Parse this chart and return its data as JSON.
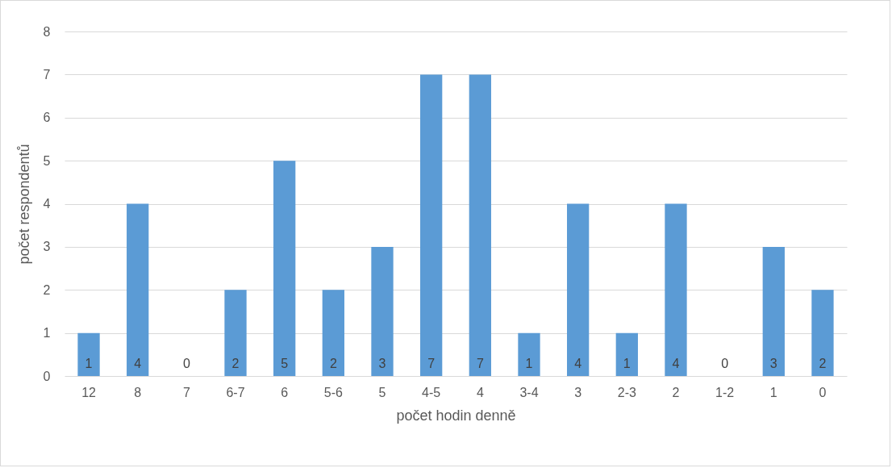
{
  "chart_data": {
    "type": "bar",
    "xlabel": "počet hodin denně",
    "ylabel": "počet respondentů",
    "categories": [
      "12",
      "8",
      "7",
      "6-7",
      "6",
      "5-6",
      "5",
      "4-5",
      "4",
      "3-4",
      "3",
      "2-3",
      "2",
      "1-2",
      "1",
      "0"
    ],
    "values": [
      1,
      4,
      0,
      2,
      5,
      2,
      3,
      7,
      7,
      1,
      4,
      1,
      4,
      0,
      3,
      2
    ],
    "color": "#5b9bd5",
    "ylim": [
      0,
      8
    ],
    "yticks": [
      0,
      1,
      2,
      3,
      4,
      5,
      6,
      7,
      8
    ],
    "grid": "y",
    "data_labels": true
  }
}
